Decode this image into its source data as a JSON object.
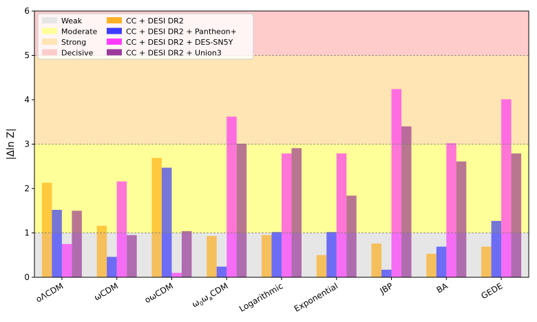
{
  "chart_data": {
    "type": "bar",
    "ylabel": "|Δln Z|",
    "ylim": [
      0,
      6
    ],
    "yticks": [
      "0",
      "1",
      "2",
      "3",
      "4",
      "5",
      "6"
    ],
    "categories": [
      "oΛCDM",
      "ωCDM",
      "oωCDM",
      "ω0ωaCDM",
      "Logarithmic",
      "Exponential",
      "JBP",
      "BA",
      "GEDE"
    ],
    "x_tick_labels": [
      {
        "parts": [
          {
            "t": "oΛCDM"
          }
        ]
      },
      {
        "parts": [
          {
            "t": "ωCDM"
          }
        ]
      },
      {
        "parts": [
          {
            "t": "oωCDM"
          }
        ]
      },
      {
        "parts": [
          {
            "t": "ω"
          },
          {
            "t": "0",
            "sub": true
          },
          {
            "t": "ω"
          },
          {
            "t": "a",
            "sub": true
          },
          {
            "t": "CDM"
          }
        ]
      },
      {
        "parts": [
          {
            "t": "Logarithmic"
          }
        ]
      },
      {
        "parts": [
          {
            "t": "Exponential"
          }
        ]
      },
      {
        "parts": [
          {
            "t": "JBP"
          }
        ]
      },
      {
        "parts": [
          {
            "t": "BA"
          }
        ]
      },
      {
        "parts": [
          {
            "t": "GEDE"
          }
        ]
      }
    ],
    "evidence_bands": [
      {
        "name": "Weak",
        "from": 0,
        "to": 1,
        "color": "#e6e6e6"
      },
      {
        "name": "Moderate",
        "from": 1,
        "to": 3,
        "color": "#ffff99"
      },
      {
        "name": "Strong",
        "from": 3,
        "to": 5,
        "color": "#ffe5b3"
      },
      {
        "name": "Decisive",
        "from": 5,
        "to": 6,
        "color": "#ffcccc"
      }
    ],
    "series": [
      {
        "name": "CC + DESI DR2",
        "color": "#ffa500",
        "values": [
          2.13,
          1.16,
          2.69,
          0.93,
          0.95,
          0.5,
          0.76,
          0.53,
          0.69
        ]
      },
      {
        "name": "CC + DESI DR2 + Pantheon+",
        "color": "#1a1aff",
        "values": [
          1.52,
          0.46,
          2.47,
          0.24,
          1.02,
          1.02,
          0.17,
          0.69,
          1.27
        ]
      },
      {
        "name": "CC + DESI DR2 + DES-SN5Y",
        "color": "#ff1aff",
        "values": [
          0.75,
          2.16,
          0.1,
          3.62,
          2.79,
          2.79,
          4.24,
          3.02,
          4.01
        ]
      },
      {
        "name": "CC + DESI DR2 + Union3",
        "color": "#8b1a8b",
        "values": [
          1.5,
          0.95,
          1.04,
          3.01,
          2.91,
          1.84,
          3.4,
          2.61,
          2.79
        ]
      }
    ],
    "grid": "dashed lines at 1, 3, 5",
    "legend_position": "top-left"
  }
}
